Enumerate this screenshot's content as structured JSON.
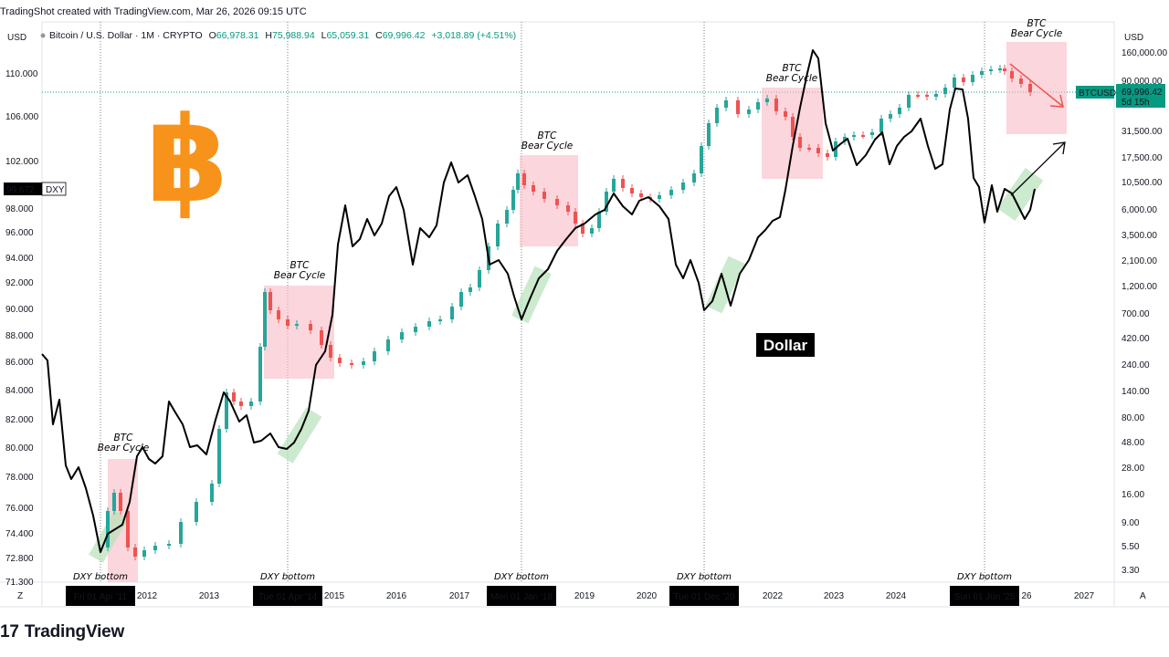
{
  "header": {
    "snapshot_line": "TradingShot created with TradingView.com, Mar 26, 2026 09:15 UTC",
    "left_scale_label": "USD",
    "right_scale_label": "USD",
    "symbol_line": "Bitcoin / U.S. Dollar · 1M · CRYPTO",
    "ohlc": {
      "o_label": "O",
      "o": "66,978.31",
      "h_label": "H",
      "h": "75,988.94",
      "l_label": "L",
      "l": "65,059.31",
      "c_label": "C",
      "c": "69,996.42",
      "change": "+3,018.89 (+4.51%)"
    }
  },
  "chart_data": {
    "type": "line",
    "series": [
      {
        "name": "BTCUSD",
        "values_kind": "monthly candles (log scale)",
        "last_price": "69,996.42",
        "countdown": "5d 15h"
      },
      {
        "name": "DXY",
        "last_value": "99.672"
      }
    ],
    "left_axis_ticks": [
      "110.000",
      "106.000",
      "102.000",
      "98.000",
      "96.000",
      "94.000",
      "92.000",
      "90.000",
      "88.000",
      "86.000",
      "84.000",
      "82.000",
      "80.000",
      "78.000",
      "76.000",
      "74.400",
      "72.800",
      "71.300"
    ],
    "right_axis_ticks": [
      "160,000.00",
      "90,000.00",
      "31,500.00",
      "17,500.00",
      "10,500.00",
      "6,000.00",
      "3,500.00",
      "2,100.00",
      "1,200.00",
      "700.00",
      "420.00",
      "240.00",
      "140.00",
      "80.00",
      "48.00",
      "28.00",
      "16.00",
      "9.00",
      "5.50",
      "3.30"
    ],
    "x_ticks": [
      "2012",
      "2013",
      "2015",
      "2016",
      "2017",
      "2019",
      "2020",
      "2022",
      "2023",
      "2024",
      "26",
      "2027"
    ],
    "x_date_labels": [
      "Fri 01 Apr '11",
      "Tue 01 Apr '14",
      "Mon 01 Jan '18",
      "Tue 01 Dec '20",
      "Sun 01 Jun '25"
    ],
    "annotations": {
      "bear_cycle_line1": "BTC",
      "bear_cycle_line2": "Bear Cycle",
      "dxy_bottom": "DXY bottom",
      "dollar_label": "Dollar"
    },
    "colors": {
      "up": "#26a69a",
      "down": "#ef5350",
      "dxy_line": "#000000",
      "bear_box": "#f8bbc4",
      "bottom_box": "#b7e1b9",
      "btc_logo": "#f7931a"
    }
  },
  "axis_buttons": {
    "left": "Z",
    "right": "A"
  },
  "footer": {
    "brand": "TradingView",
    "brand_mark": "17"
  }
}
